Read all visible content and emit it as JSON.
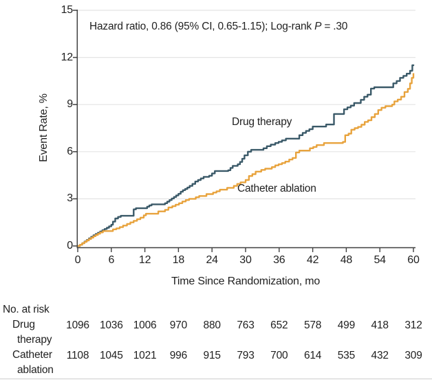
{
  "figure": {
    "annotation": {
      "prefix": "Hazard ratio, 0.86 (95% CI, 0.65-1.15); Log-rank ",
      "stat_symbol": "P",
      "suffix": " = .30"
    },
    "y_axis_title": "Event Rate, %",
    "x_axis_title": "Time Since Randomization, mo"
  },
  "colors": {
    "drug_therapy": "#3a5968",
    "catheter_ablation": "#e8a33d",
    "gridline": "#e4e4e4",
    "axis": "#3f3f3f",
    "text": "#1f1f1f",
    "bottom_rule": "#cccccc"
  },
  "chart_data": {
    "type": "line",
    "subtype": "kaplan-meier-step",
    "title": "",
    "xlabel": "Time Since Randomization, mo",
    "ylabel": "Event Rate, %",
    "xlim": [
      0,
      60
    ],
    "ylim": [
      0,
      15
    ],
    "x_ticks": [
      0,
      6,
      12,
      18,
      24,
      30,
      36,
      42,
      48,
      54,
      60
    ],
    "y_ticks": [
      0,
      3,
      6,
      9,
      12,
      15
    ],
    "grid": "horizontal-light",
    "legend_position": "inline-curve-labels",
    "annotation": "Hazard ratio, 0.86 (95% CI, 0.65-1.15); Log-rank P = .30",
    "series": [
      {
        "name": "Drug therapy",
        "color": "#3a5968",
        "points": [
          [
            0,
            0
          ],
          [
            0.4,
            0.08
          ],
          [
            0.8,
            0.18
          ],
          [
            1.2,
            0.28
          ],
          [
            1.6,
            0.38
          ],
          [
            2,
            0.48
          ],
          [
            2.4,
            0.58
          ],
          [
            2.8,
            0.68
          ],
          [
            3.2,
            0.76
          ],
          [
            3.6,
            0.84
          ],
          [
            4,
            0.92
          ],
          [
            4.4,
            1.0
          ],
          [
            4.8,
            1.08
          ],
          [
            5.2,
            1.16
          ],
          [
            5.6,
            1.25
          ],
          [
            6,
            1.35
          ],
          [
            6.3,
            1.55
          ],
          [
            6.7,
            1.75
          ],
          [
            7.2,
            1.85
          ],
          [
            7.7,
            1.92
          ],
          [
            10,
            2.33
          ],
          [
            10.4,
            2.4
          ],
          [
            12.4,
            2.5
          ],
          [
            12.8,
            2.58
          ],
          [
            13.2,
            2.65
          ],
          [
            15.6,
            2.72
          ],
          [
            16,
            2.82
          ],
          [
            16.4,
            2.92
          ],
          [
            16.8,
            3.02
          ],
          [
            17.2,
            3.12
          ],
          [
            17.6,
            3.22
          ],
          [
            18,
            3.32
          ],
          [
            18.4,
            3.45
          ],
          [
            18.8,
            3.55
          ],
          [
            19.2,
            3.63
          ],
          [
            19.6,
            3.72
          ],
          [
            20,
            3.82
          ],
          [
            20.5,
            3.95
          ],
          [
            21,
            4.1
          ],
          [
            21.5,
            4.2
          ],
          [
            22,
            4.3
          ],
          [
            22.5,
            4.4
          ],
          [
            23.5,
            4.47
          ],
          [
            24,
            4.62
          ],
          [
            24.5,
            4.77
          ],
          [
            26.9,
            4.82
          ],
          [
            27.3,
            4.97
          ],
          [
            27.7,
            5.1
          ],
          [
            28.6,
            5.2
          ],
          [
            29,
            5.35
          ],
          [
            29.4,
            5.55
          ],
          [
            29.8,
            5.77
          ],
          [
            30.4,
            6.0
          ],
          [
            31,
            6.12
          ],
          [
            33.2,
            6.22
          ],
          [
            33.8,
            6.35
          ],
          [
            34.5,
            6.45
          ],
          [
            35.3,
            6.55
          ],
          [
            35.9,
            6.63
          ],
          [
            36.5,
            6.72
          ],
          [
            37.2,
            6.83
          ],
          [
            39.6,
            7.05
          ],
          [
            40.2,
            7.2
          ],
          [
            40.8,
            7.32
          ],
          [
            41.4,
            7.43
          ],
          [
            42,
            7.6
          ],
          [
            44.4,
            7.73
          ],
          [
            45.8,
            8.4
          ],
          [
            47.6,
            8.7
          ],
          [
            48.2,
            8.82
          ],
          [
            48.8,
            8.93
          ],
          [
            49.4,
            9.1
          ],
          [
            50.6,
            9.3
          ],
          [
            51.2,
            9.5
          ],
          [
            51.8,
            9.63
          ],
          [
            52.4,
            10.02
          ],
          [
            53,
            10.1
          ],
          [
            56.4,
            10.35
          ],
          [
            57,
            10.5
          ],
          [
            57.6,
            10.7
          ],
          [
            58.2,
            10.83
          ],
          [
            58.8,
            10.97
          ],
          [
            59.4,
            11.15
          ],
          [
            59.8,
            11.5
          ],
          [
            60,
            11.55
          ]
        ]
      },
      {
        "name": "Catheter ablation",
        "color": "#e8a33d",
        "points": [
          [
            0,
            0
          ],
          [
            0.4,
            0.08
          ],
          [
            0.8,
            0.17
          ],
          [
            1.2,
            0.26
          ],
          [
            1.6,
            0.35
          ],
          [
            2,
            0.44
          ],
          [
            2.4,
            0.53
          ],
          [
            2.8,
            0.62
          ],
          [
            3.2,
            0.7
          ],
          [
            3.6,
            0.78
          ],
          [
            4,
            0.86
          ],
          [
            4.5,
            0.95
          ],
          [
            6.3,
            1.06
          ],
          [
            6.9,
            1.12
          ],
          [
            7.5,
            1.2
          ],
          [
            8.1,
            1.3
          ],
          [
            8.8,
            1.4
          ],
          [
            9.4,
            1.5
          ],
          [
            10,
            1.6
          ],
          [
            10.6,
            1.7
          ],
          [
            11.2,
            1.8
          ],
          [
            11.8,
            1.95
          ],
          [
            12.2,
            2.05
          ],
          [
            14.4,
            2.2
          ],
          [
            15.6,
            2.3
          ],
          [
            16.2,
            2.45
          ],
          [
            16.9,
            2.53
          ],
          [
            17.5,
            2.63
          ],
          [
            18.1,
            2.72
          ],
          [
            18.7,
            2.83
          ],
          [
            19.3,
            2.92
          ],
          [
            19.9,
            3.0
          ],
          [
            21.1,
            3.1
          ],
          [
            21.7,
            3.18
          ],
          [
            23,
            3.3
          ],
          [
            24.2,
            3.4
          ],
          [
            24.8,
            3.48
          ],
          [
            25.4,
            3.58
          ],
          [
            26.7,
            3.7
          ],
          [
            27.9,
            3.82
          ],
          [
            28.5,
            3.95
          ],
          [
            29.1,
            4.05
          ],
          [
            30,
            4.2
          ],
          [
            30.6,
            4.45
          ],
          [
            31.2,
            4.57
          ],
          [
            31.8,
            4.73
          ],
          [
            32.8,
            4.84
          ],
          [
            33.5,
            4.92
          ],
          [
            34.7,
            5.02
          ],
          [
            35.3,
            5.13
          ],
          [
            35.9,
            5.2
          ],
          [
            36.5,
            5.28
          ],
          [
            37.1,
            5.37
          ],
          [
            37.8,
            5.5
          ],
          [
            38.4,
            5.6
          ],
          [
            39,
            5.95
          ],
          [
            39.6,
            6.07
          ],
          [
            41.5,
            6.22
          ],
          [
            42.1,
            6.3
          ],
          [
            42.7,
            6.42
          ],
          [
            44,
            6.55
          ],
          [
            47.4,
            6.62
          ],
          [
            47.8,
            7.05
          ],
          [
            48.4,
            7.15
          ],
          [
            48.9,
            7.4
          ],
          [
            49.5,
            7.5
          ],
          [
            50.1,
            7.58
          ],
          [
            50.7,
            7.72
          ],
          [
            51.3,
            7.9
          ],
          [
            51.9,
            8.0
          ],
          [
            52.5,
            8.2
          ],
          [
            53.1,
            8.4
          ],
          [
            53.7,
            8.65
          ],
          [
            54.3,
            8.8
          ],
          [
            55,
            8.9
          ],
          [
            56.2,
            9.0
          ],
          [
            56.6,
            9.2
          ],
          [
            57.2,
            9.32
          ],
          [
            57.8,
            9.5
          ],
          [
            58.4,
            9.8
          ],
          [
            59,
            10.0
          ],
          [
            59.4,
            10.35
          ],
          [
            59.7,
            10.7
          ],
          [
            60,
            11.0
          ]
        ]
      }
    ],
    "risk_table": {
      "title": "No. at risk",
      "time_points": [
        0,
        6,
        12,
        18,
        24,
        30,
        36,
        42,
        48,
        54,
        60
      ],
      "rows": [
        {
          "label_lines": [
            "Drug",
            "therapy"
          ],
          "values": [
            "1096",
            "1036",
            "1006",
            "970",
            "880",
            "763",
            "652",
            "578",
            "499",
            "418",
            "312"
          ]
        },
        {
          "label_lines": [
            "Catheter",
            "ablation"
          ],
          "values": [
            "1108",
            "1045",
            "1021",
            "996",
            "915",
            "793",
            "700",
            "614",
            "535",
            "432",
            "309"
          ]
        }
      ]
    }
  }
}
